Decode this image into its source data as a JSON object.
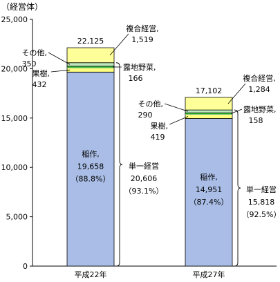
{
  "chart_data": {
    "type": "bar",
    "stacked": true,
    "unit_label": "（経営体）",
    "categories": [
      "平成22年",
      "平成27年"
    ],
    "ylim": [
      0,
      25000
    ],
    "yticks": [
      0,
      5000,
      10000,
      15000,
      20000,
      25000
    ],
    "ytick_labels": [
      "0",
      "5,000",
      "10,000",
      "15,000",
      "20,000",
      "25,000"
    ],
    "grid": false,
    "colors": {
      "rice": "#a9bde6",
      "fruit": "#ffff80",
      "vegetable": "#33cc33",
      "other": "#bfe8bf",
      "multi": "#ffff99",
      "edge": "#000000",
      "divider": "#80c080"
    },
    "series": [
      {
        "key": "rice",
        "values": [
          19658,
          14951
        ]
      },
      {
        "key": "fruit",
        "values": [
          432,
          419
        ]
      },
      {
        "key": "vegetable",
        "values": [
          166,
          158
        ]
      },
      {
        "key": "other",
        "values": [
          350,
          290
        ]
      },
      {
        "key": "multi",
        "values": [
          1519,
          1284
        ]
      }
    ],
    "totals": [
      "22,125",
      "17,102"
    ],
    "labels": {
      "multi": [
        [
          "複合経営,",
          "1,519"
        ],
        [
          "複合経営,",
          "1,284"
        ]
      ],
      "vegetable": [
        [
          "露地野菜,",
          "166"
        ],
        [
          "露地野菜,",
          "158"
        ]
      ],
      "other": [
        [
          "その他,",
          "350"
        ],
        [
          "その他,",
          "290"
        ]
      ],
      "fruit": [
        [
          "果樹,",
          "432"
        ],
        [
          "果樹,",
          "419"
        ]
      ],
      "rice": [
        [
          "稲作,",
          "19,658",
          "（88.8%）"
        ],
        [
          "稲作,",
          "14,951",
          "（87.4%）"
        ]
      ],
      "single": [
        [
          "単一経営",
          "20,606",
          "（93.1%）"
        ],
        [
          "単一経営",
          "15,818",
          "（92.5%）"
        ]
      ]
    }
  }
}
